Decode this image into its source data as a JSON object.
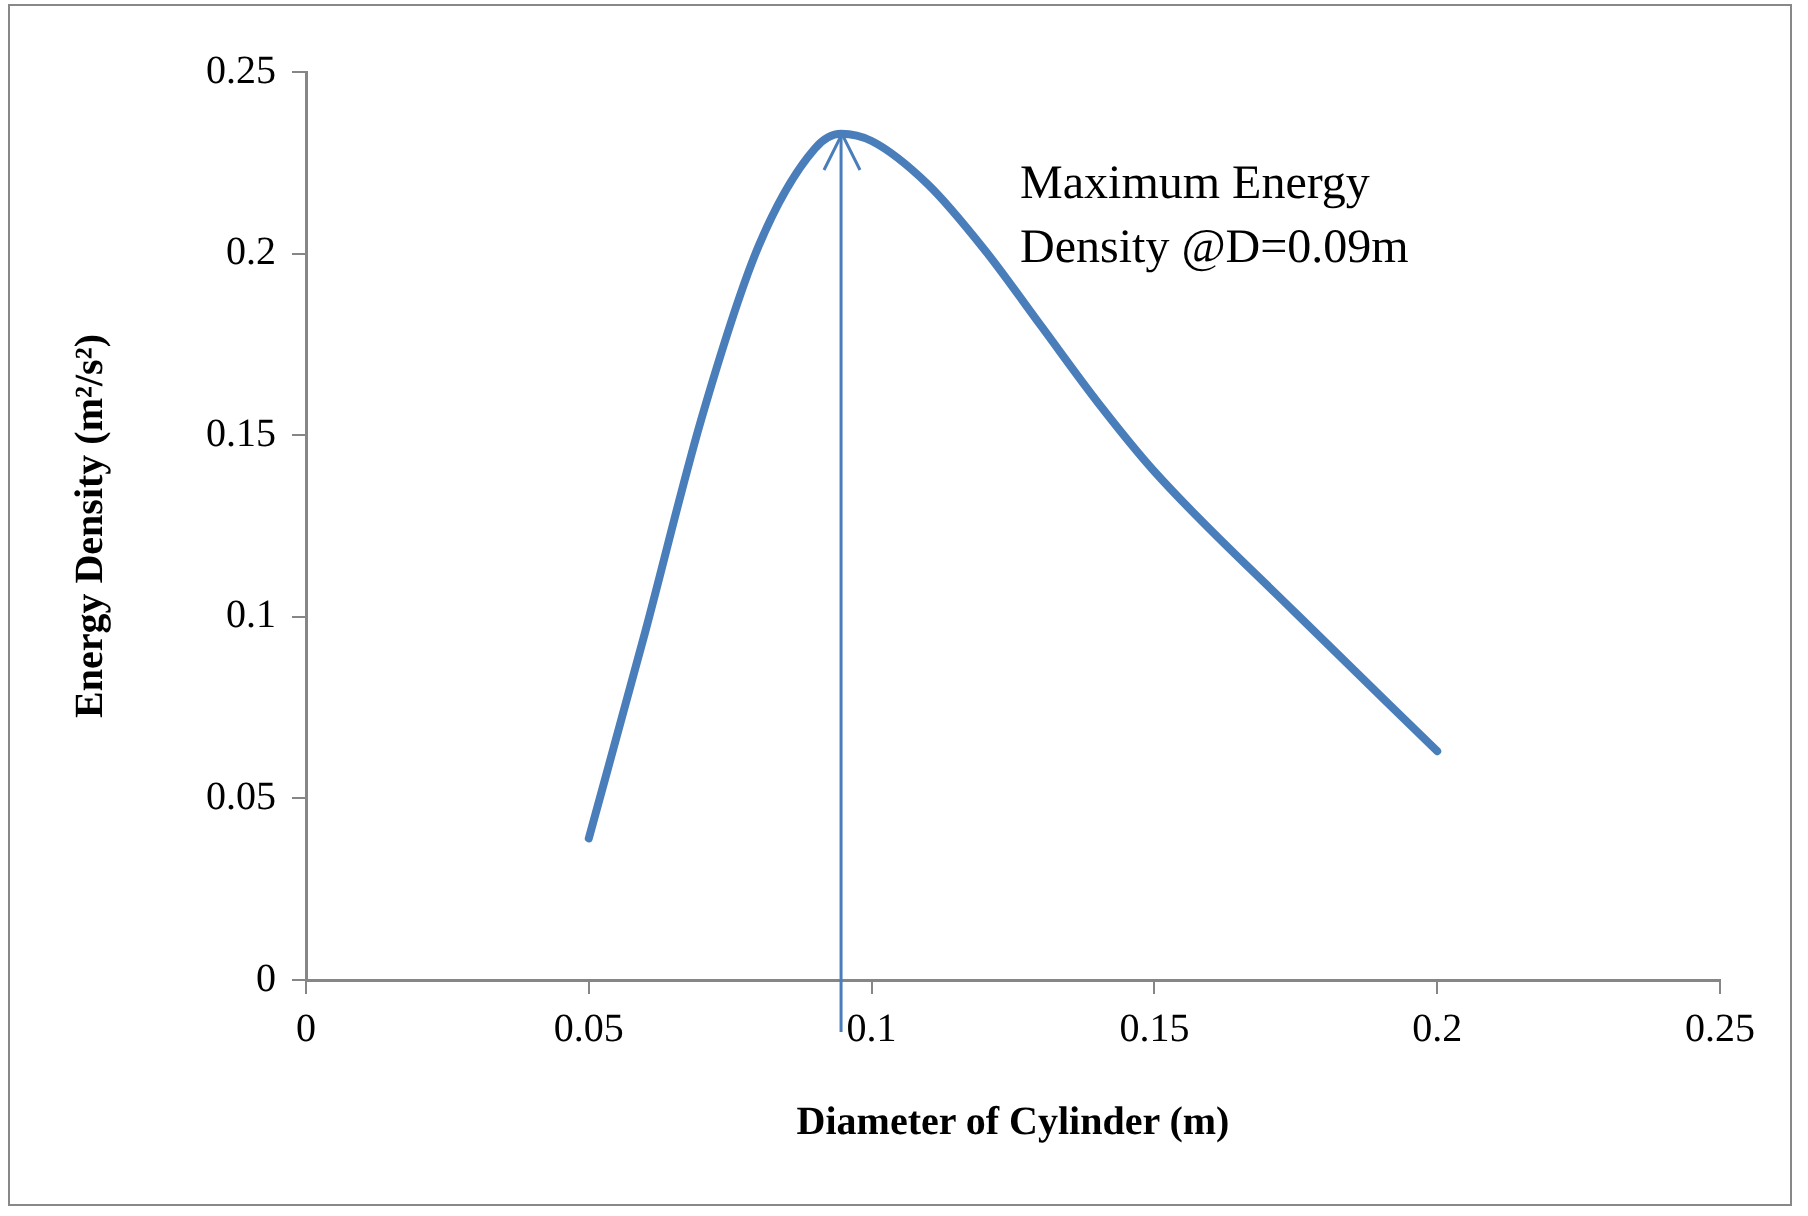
{
  "chart_data": {
    "type": "line",
    "xlabel": "Diameter of Cylinder (m)",
    "ylabel": "Energy Density (m²/s²)",
    "x": [
      0.05,
      0.06,
      0.07,
      0.08,
      0.09,
      0.0946,
      0.1,
      0.11,
      0.12,
      0.13,
      0.14,
      0.15,
      0.175,
      0.2
    ],
    "series": [
      {
        "color": "#4a7ebb",
        "values": [
          0.039,
          0.096,
          0.155,
          0.202,
          0.229,
          0.233,
          0.231,
          0.219,
          0.201,
          0.18,
          0.159,
          0.14,
          0.101,
          0.063
        ]
      }
    ],
    "xlim": [
      0,
      0.25
    ],
    "xticks": [
      0,
      0.05,
      0.1,
      0.15,
      0.2,
      0.25
    ],
    "ylim": [
      0,
      0.25
    ],
    "yticks": [
      0,
      0.05,
      0.1,
      0.15,
      0.2,
      0.25
    ],
    "grid": false,
    "legend": false,
    "marker": "none",
    "line_style": "solid",
    "ref_lines": [
      {
        "axis": "x",
        "value": 0.0946,
        "color": "#4a7ebb"
      }
    ],
    "annotations": [
      "Maximum Energy Density @D=0.09m"
    ]
  }
}
